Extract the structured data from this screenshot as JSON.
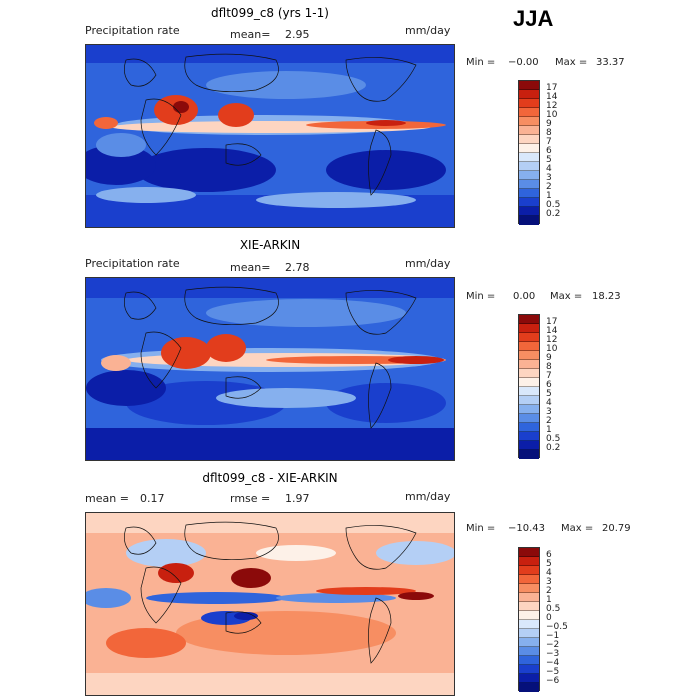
{
  "season": "JJA",
  "panels": [
    {
      "title": "dflt099_c8 (yrs 1-1)",
      "left_label": "Precipitation rate",
      "center_label": "mean=",
      "center_value": "2.95",
      "units": "mm/day",
      "min_label": "Min =",
      "min_value": "−0.00",
      "max_label": "Max =",
      "max_value": "33.37",
      "colorbar_levels": [
        "17",
        "14",
        "12",
        "10",
        "9",
        "8",
        "7",
        "6",
        "5",
        "4",
        "3",
        "2",
        "1",
        "0.5",
        "0.2"
      ],
      "colorbar_colors": [
        "#8b0a0a",
        "#c8200f",
        "#e23d1c",
        "#f2663a",
        "#f78e62",
        "#fab294",
        "#fdd5c1",
        "#fdf1e8",
        "#d9e8fb",
        "#b4cff5",
        "#86b0ee",
        "#5a8de6",
        "#2f64dc",
        "#1a3fcd",
        "#0b1ea8",
        "#05107a"
      ]
    },
    {
      "title": "XIE-ARKIN",
      "left_label": "Precipitation rate",
      "center_label": "mean=",
      "center_value": "2.78",
      "units": "mm/day",
      "min_label": "Min =",
      "min_value": "0.00",
      "max_label": "Max =",
      "max_value": "18.23",
      "colorbar_levels": [
        "17",
        "14",
        "12",
        "10",
        "9",
        "8",
        "7",
        "6",
        "5",
        "4",
        "3",
        "2",
        "1",
        "0.5",
        "0.2"
      ],
      "colorbar_colors": [
        "#8b0a0a",
        "#c8200f",
        "#e23d1c",
        "#f2663a",
        "#f78e62",
        "#fab294",
        "#fdd5c1",
        "#fdf1e8",
        "#d9e8fb",
        "#b4cff5",
        "#86b0ee",
        "#5a8de6",
        "#2f64dc",
        "#1a3fcd",
        "#0b1ea8",
        "#05107a"
      ]
    },
    {
      "title": "dflt099_c8 - XIE-ARKIN",
      "left_label": "mean =",
      "left_value": "0.17",
      "center_label": "rmse =",
      "center_value": "1.97",
      "units": "mm/day",
      "min_label": "Min =",
      "min_value": "−10.43",
      "max_label": "Max =",
      "max_value": "20.79",
      "colorbar_levels": [
        "6",
        "5",
        "4",
        "3",
        "2",
        "1",
        "0.5",
        "0",
        "−0.5",
        "−1",
        "−2",
        "−3",
        "−4",
        "−5",
        "−6"
      ],
      "colorbar_colors": [
        "#8b0a0a",
        "#c8200f",
        "#e23d1c",
        "#f2663a",
        "#f78e62",
        "#fab294",
        "#fdd5c1",
        "#fdf1e8",
        "#d9e8fb",
        "#b4cff5",
        "#86b0ee",
        "#5a8de6",
        "#2f64dc",
        "#1a3fcd",
        "#0b1ea8",
        "#05107a"
      ]
    }
  ]
}
